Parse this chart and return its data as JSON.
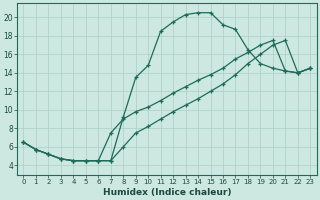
{
  "xlabel": "Humidex (Indice chaleur)",
  "bg_color": "#cce8e0",
  "line_color": "#1e6b5a",
  "grid_color": "#aacfc8",
  "xlim": [
    -0.5,
    23.5
  ],
  "ylim": [
    3.0,
    21.5
  ],
  "xticks": [
    0,
    1,
    2,
    3,
    4,
    5,
    6,
    7,
    8,
    9,
    10,
    11,
    12,
    13,
    14,
    15,
    16,
    17,
    18,
    19,
    20,
    21,
    22,
    23
  ],
  "yticks": [
    4,
    6,
    8,
    10,
    12,
    14,
    16,
    18,
    20
  ],
  "line1_x": [
    0,
    1,
    2,
    3,
    4,
    5,
    6,
    7,
    8,
    9,
    10,
    11,
    12,
    13,
    14,
    15,
    16,
    17,
    18,
    19,
    20,
    21,
    22,
    23
  ],
  "line1_y": [
    6.5,
    5.7,
    5.2,
    4.7,
    4.5,
    4.5,
    4.5,
    4.5,
    9.2,
    13.5,
    14.8,
    18.5,
    19.5,
    20.3,
    20.5,
    20.5,
    19.2,
    18.7,
    16.5,
    15.0,
    14.5,
    14.2,
    14.0,
    14.5
  ],
  "line2_x": [
    0,
    1,
    2,
    3,
    4,
    5,
    6,
    7,
    8,
    9,
    10,
    11,
    12,
    13,
    14,
    15,
    16,
    17,
    18,
    19,
    20,
    21,
    22,
    23
  ],
  "line2_y": [
    6.5,
    5.7,
    5.2,
    4.7,
    4.5,
    4.5,
    4.5,
    7.5,
    9.0,
    9.8,
    10.3,
    11.0,
    11.8,
    12.5,
    13.2,
    13.8,
    14.5,
    15.5,
    16.2,
    17.0,
    17.5,
    14.2,
    14.0,
    14.5
  ],
  "line3_x": [
    0,
    1,
    2,
    3,
    4,
    5,
    6,
    7,
    8,
    9,
    10,
    11,
    12,
    13,
    14,
    15,
    16,
    17,
    18,
    19,
    20,
    21,
    22,
    23
  ],
  "line3_y": [
    6.5,
    5.7,
    5.2,
    4.7,
    4.5,
    4.5,
    4.5,
    4.5,
    6.0,
    7.5,
    8.2,
    9.0,
    9.8,
    10.5,
    11.2,
    12.0,
    12.8,
    13.8,
    15.0,
    16.0,
    17.0,
    17.5,
    14.0,
    14.5
  ]
}
